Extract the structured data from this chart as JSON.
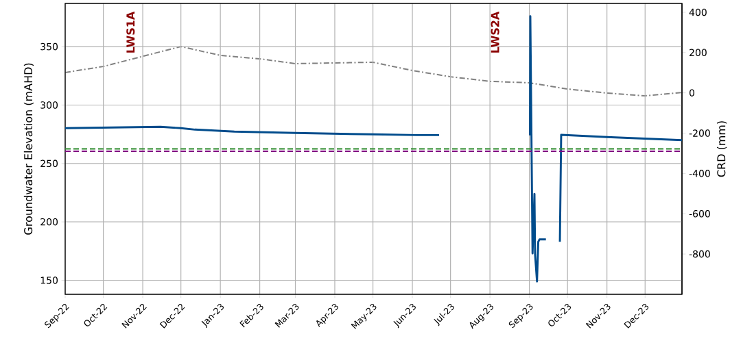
{
  "chart_data": {
    "type": "line",
    "ylabel": "Groundwater Elevation (mAHD)",
    "y2label": "CRD (mm)",
    "xlim": [
      "2022-09-01",
      "2023-12-30"
    ],
    "xticks": [
      {
        "value": "2022-09-01",
        "label": "Sep-22"
      },
      {
        "value": "2022-10-01",
        "label": "Oct-22"
      },
      {
        "value": "2022-11-01",
        "label": "Nov-22"
      },
      {
        "value": "2022-12-01",
        "label": "Dec-22"
      },
      {
        "value": "2023-01-01",
        "label": "Jan-23"
      },
      {
        "value": "2023-02-01",
        "label": "Feb-23"
      },
      {
        "value": "2023-03-01",
        "label": "Mar-23"
      },
      {
        "value": "2023-04-01",
        "label": "Apr-23"
      },
      {
        "value": "2023-05-01",
        "label": "May-23"
      },
      {
        "value": "2023-06-01",
        "label": "Jun-23"
      },
      {
        "value": "2023-07-01",
        "label": "Jul-23"
      },
      {
        "value": "2023-08-01",
        "label": "Aug-23"
      },
      {
        "value": "2023-09-01",
        "label": "Sep-23"
      },
      {
        "value": "2023-10-01",
        "label": "Oct-23"
      },
      {
        "value": "2023-11-01",
        "label": "Nov-23"
      },
      {
        "value": "2023-12-01",
        "label": "Dec-23"
      }
    ],
    "ylim": [
      138,
      387
    ],
    "yticks": [
      150,
      200,
      250,
      300,
      350
    ],
    "y2lim": [
      -1000,
      444
    ],
    "y2ticks": [
      -800,
      -600,
      -400,
      -200,
      0,
      200,
      400
    ],
    "grid": true,
    "series": [
      {
        "color": "#004c8c",
        "line_style": "solid",
        "x": [
          "2022-09-01",
          "2022-11-15",
          "2022-12-01",
          "2022-12-12",
          "2023-01-12",
          "2023-03-01",
          "2023-05-01",
          "2023-06-05",
          "2023-06-22",
          "2023-06-23",
          "2023-09-01T12:00",
          "2023-09-01T18:00",
          "2023-09-03T12:00",
          "2023-09-05T00:00",
          "2023-09-05T12:00",
          "2023-09-07T00:00",
          "2023-09-08T00:00",
          "2023-09-09T00:00",
          "2023-09-14",
          "2023-09-20",
          "2023-09-25",
          "2023-09-26",
          "2023-11-01",
          "2023-12-30"
        ],
        "values": [
          280.2,
          281.4,
          280.2,
          279,
          277.3,
          276.1,
          274.9,
          274.3,
          274.3,
          null,
          274,
          376,
          173,
          224,
          172,
          149,
          183,
          185,
          185,
          null,
          183,
          274.5,
          272.6,
          270
        ]
      },
      {
        "color": "#808080",
        "line_style": "dashdot",
        "axis": "y2",
        "x": [
          "2022-09-01",
          "2022-10-01",
          "2022-12-01",
          "2023-01-01",
          "2023-02-01",
          "2023-03-01",
          "2023-05-01",
          "2023-06-01",
          "2023-07-01",
          "2023-08-01",
          "2023-09-01",
          "2023-10-01",
          "2023-11-01",
          "2023-12-01",
          "2023-12-30"
        ],
        "values": [
          101,
          131,
          230,
          186,
          169,
          145,
          152,
          111,
          80,
          57,
          50,
          19,
          -1,
          -15,
          2
        ]
      }
    ],
    "ref_lines": [
      {
        "axis": "y",
        "value": 262.5,
        "color": "#2e8b2e",
        "line_style": "dashed"
      },
      {
        "axis": "y",
        "value": 260.5,
        "color": "#800080",
        "line_style": "dashed"
      }
    ],
    "annotations": [
      "LWS1A",
      "LWS2A"
    ]
  }
}
